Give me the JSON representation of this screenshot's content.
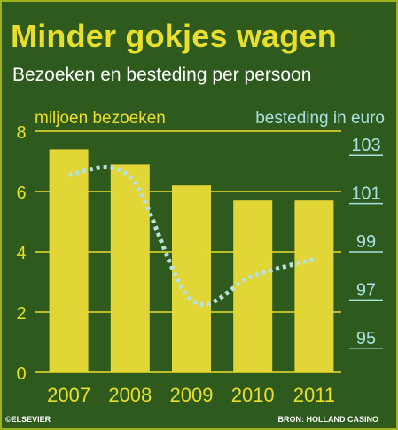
{
  "title": "Minder gokjes wagen",
  "subtitle": "Bezoeken en besteding per persoon",
  "credit": "©ELSEVIER",
  "source": "BRON: HOLLAND CASINO",
  "colors": {
    "background": "#2f5a1d",
    "bars": "#e2d536",
    "title": "#e8de2c",
    "left_axis": "#e8de2c",
    "right_axis": "#a8e0e0",
    "line": "#b8e0dc"
  },
  "chart_data": {
    "type": "bar",
    "categories": [
      "2007",
      "2008",
      "2009",
      "2010",
      "2011"
    ],
    "left_axis": {
      "label": "miljoen bezoeken",
      "ylim": [
        0,
        8
      ],
      "ticks": [
        "0",
        "2",
        "4",
        "6",
        "8"
      ]
    },
    "right_axis": {
      "label": "besteding in euro",
      "ylim": [
        94,
        104
      ],
      "ticks": [
        "95",
        "97",
        "99",
        "101",
        "103"
      ]
    },
    "series": [
      {
        "name": "miljoen bezoeken",
        "type": "bar",
        "axis": "left",
        "values": [
          7.4,
          6.9,
          6.2,
          5.7,
          5.7
        ]
      },
      {
        "name": "besteding in euro",
        "type": "line",
        "style": "dotted",
        "axis": "right",
        "values": [
          102.2,
          102.1,
          97.0,
          98.0,
          98.7
        ]
      }
    ],
    "grid": true
  }
}
